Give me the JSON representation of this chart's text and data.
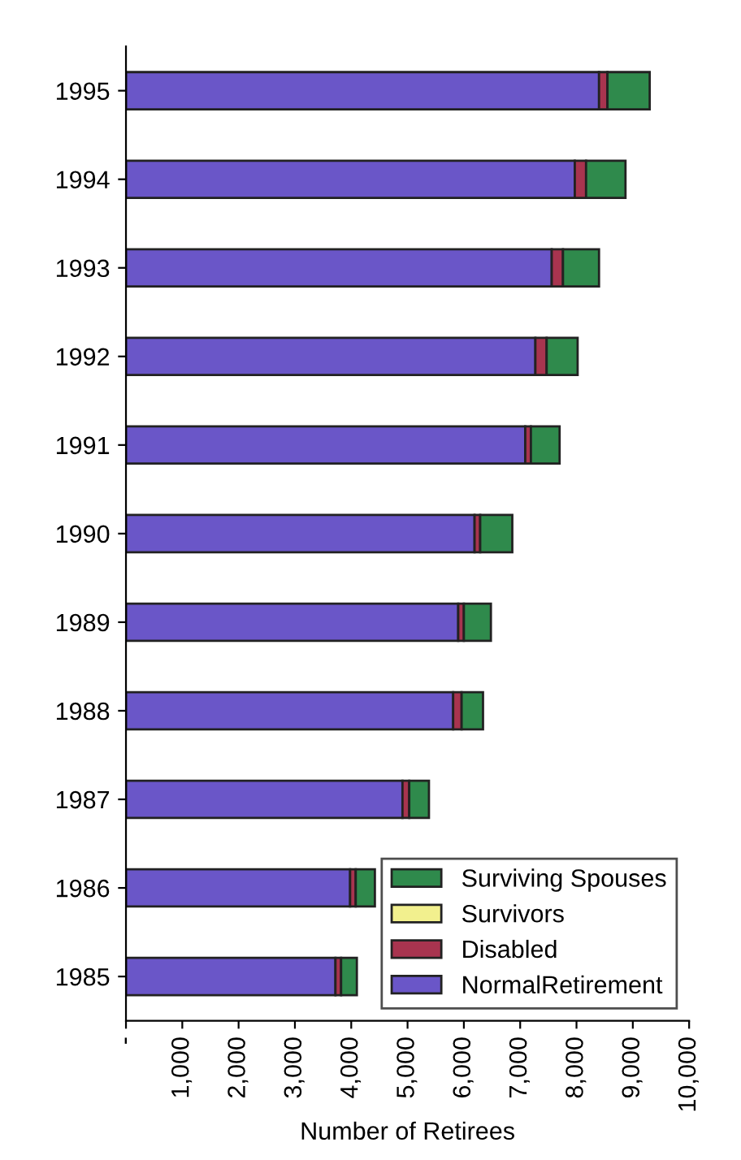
{
  "chart_data": {
    "type": "bar",
    "orientation": "horizontal",
    "stacked": true,
    "categories": [
      "1995",
      "1994",
      "1993",
      "1992",
      "1991",
      "1990",
      "1989",
      "1988",
      "1987",
      "1986",
      "1985"
    ],
    "series": [
      {
        "name": "NormalRetirement",
        "color": "#6a56c8",
        "values": [
          8400,
          7970,
          7560,
          7270,
          7090,
          6190,
          5900,
          5810,
          4910,
          3980,
          3720
        ]
      },
      {
        "name": "Disabled",
        "color": "#a8344f",
        "values": [
          150,
          200,
          200,
          200,
          100,
          100,
          100,
          150,
          120,
          100,
          100
        ]
      },
      {
        "name": "Survivors",
        "color": "#f2f08e",
        "values": [
          null,
          null,
          null,
          null,
          null,
          null,
          null,
          null,
          null,
          null,
          null
        ]
      },
      {
        "name": "Surviving Spouses",
        "color": "#2f8a4c",
        "values": [
          750,
          700,
          640,
          550,
          510,
          570,
          480,
          380,
          350,
          340,
          280
        ]
      }
    ],
    "xlabel": "Number of Retirees",
    "xlim": [
      0,
      10000
    ],
    "xticks": [
      {
        "value": 0,
        "label": "-"
      },
      {
        "value": 1000,
        "label": "1,000"
      },
      {
        "value": 2000,
        "label": "2,000"
      },
      {
        "value": 3000,
        "label": "3,000"
      },
      {
        "value": 4000,
        "label": "4,000"
      },
      {
        "value": 5000,
        "label": "5,000"
      },
      {
        "value": 6000,
        "label": "6,000"
      },
      {
        "value": 7000,
        "label": "7,000"
      },
      {
        "value": 8000,
        "label": "8,000"
      },
      {
        "value": 9000,
        "label": "9,000"
      },
      {
        "value": 10000,
        "label": "10,000"
      }
    ],
    "legend": "lower right",
    "grid": false
  }
}
